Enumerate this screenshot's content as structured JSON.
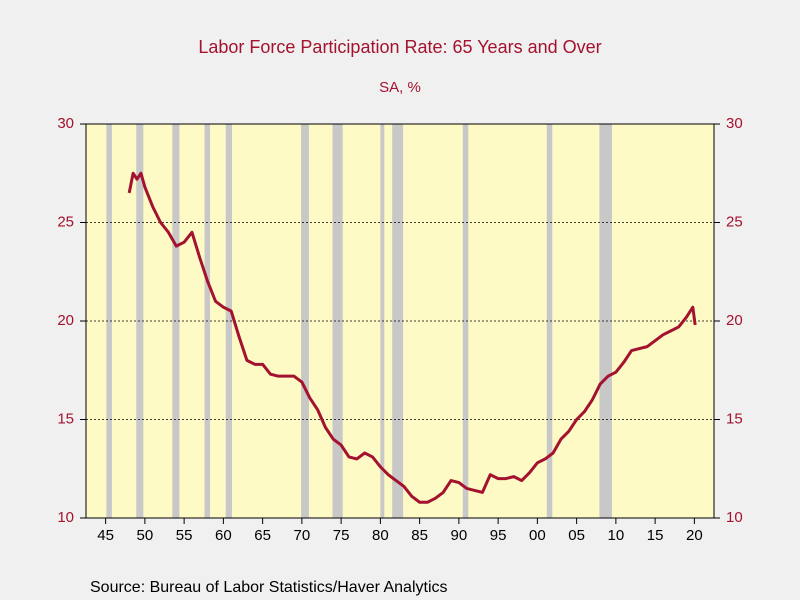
{
  "chart_data": {
    "type": "line",
    "title": "Labor Force Participation Rate: 65 Years and Over",
    "subtitle": "SA, %",
    "source": "Source:  Bureau of Labor Statistics/Haver Analytics",
    "color": "#a3122e",
    "x": [
      1948,
      1948.5,
      1949,
      1949.5,
      1950,
      1951,
      1952,
      1953,
      1954,
      1955,
      1956,
      1957,
      1958,
      1959,
      1960,
      1961,
      1962,
      1963,
      1964,
      1965,
      1966,
      1967,
      1968,
      1969,
      1970,
      1971,
      1972,
      1973,
      1974,
      1975,
      1976,
      1977,
      1978,
      1979,
      1980,
      1981,
      1982,
      1983,
      1984,
      1985,
      1986,
      1987,
      1988,
      1989,
      1990,
      1991,
      1992,
      1993,
      1994,
      1995,
      1996,
      1997,
      1998,
      1999,
      2000,
      2001,
      2002,
      2003,
      2004,
      2005,
      2006,
      2007,
      2008,
      2009,
      2010,
      2011,
      2012,
      2013,
      2014,
      2015,
      2016,
      2017,
      2018,
      2019,
      2019.8,
      2020.1
    ],
    "values": [
      26.5,
      27.5,
      27.2,
      27.5,
      26.8,
      25.8,
      25.0,
      24.5,
      23.8,
      24.0,
      24.5,
      23.2,
      22.0,
      21.0,
      20.7,
      20.5,
      19.2,
      18.0,
      17.8,
      17.8,
      17.3,
      17.2,
      17.2,
      17.2,
      16.9,
      16.1,
      15.5,
      14.6,
      14.0,
      13.7,
      13.1,
      13.0,
      13.3,
      13.1,
      12.6,
      12.2,
      11.9,
      11.6,
      11.1,
      10.8,
      10.8,
      11.0,
      11.3,
      11.9,
      11.8,
      11.5,
      11.4,
      11.3,
      12.2,
      12.0,
      12.0,
      12.1,
      11.9,
      12.3,
      12.8,
      13.0,
      13.3,
      14.0,
      14.4,
      15.0,
      15.4,
      16.0,
      16.8,
      17.2,
      17.4,
      17.9,
      18.5,
      18.6,
      18.7,
      19.0,
      19.3,
      19.5,
      19.7,
      20.2,
      20.7,
      19.8
    ],
    "recessions": [
      [
        1945.1,
        1945.8
      ],
      [
        1948.9,
        1949.8
      ],
      [
        1953.5,
        1954.4
      ],
      [
        1957.6,
        1958.3
      ],
      [
        1960.3,
        1961.1
      ],
      [
        1969.9,
        1970.9
      ],
      [
        1973.9,
        1975.2
      ],
      [
        1980.0,
        1980.5
      ],
      [
        1981.5,
        1982.9
      ],
      [
        1990.5,
        1991.2
      ],
      [
        2001.2,
        2001.9
      ],
      [
        2007.9,
        2009.5
      ]
    ],
    "recession_color": "#c8c8c8",
    "xlim": [
      1942.5,
      2022.5
    ],
    "xticks": [
      {
        "value": 1945,
        "label": "45"
      },
      {
        "value": 1950,
        "label": "50"
      },
      {
        "value": 1955,
        "label": "55"
      },
      {
        "value": 1960,
        "label": "60"
      },
      {
        "value": 1965,
        "label": "65"
      },
      {
        "value": 1970,
        "label": "70"
      },
      {
        "value": 1975,
        "label": "75"
      },
      {
        "value": 1980,
        "label": "80"
      },
      {
        "value": 1985,
        "label": "85"
      },
      {
        "value": 1990,
        "label": "90"
      },
      {
        "value": 1995,
        "label": "95"
      },
      {
        "value": 2000,
        "label": "00"
      },
      {
        "value": 2005,
        "label": "05"
      },
      {
        "value": 2010,
        "label": "10"
      },
      {
        "value": 2015,
        "label": "15"
      },
      {
        "value": 2020,
        "label": "20"
      }
    ],
    "ylim": [
      10,
      30
    ],
    "yticks": [
      10,
      15,
      20,
      25,
      30
    ],
    "y2lim": [
      10,
      30
    ],
    "y2ticks": [
      10,
      15,
      20,
      25,
      30
    ],
    "grid": true
  }
}
